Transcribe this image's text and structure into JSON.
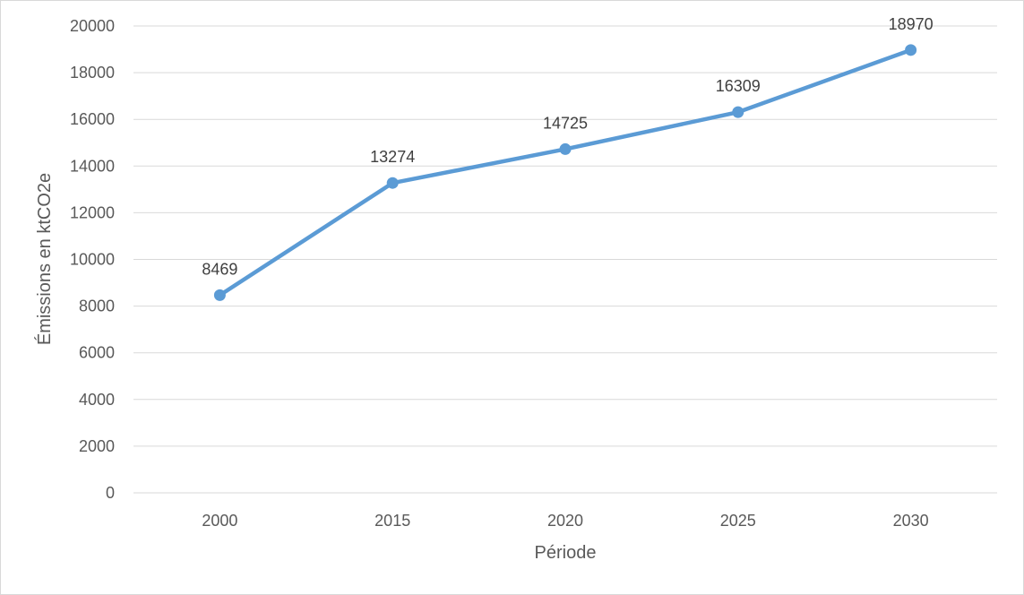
{
  "chart_data": {
    "type": "line",
    "title": "",
    "xlabel": "Période",
    "ylabel": "Émissions en ktCO2e",
    "categories": [
      "2000",
      "2015",
      "2020",
      "2025",
      "2030"
    ],
    "series": [
      {
        "values": [
          8469,
          13274,
          14725,
          16309,
          18970
        ],
        "color": "#5b9bd5"
      }
    ],
    "data_labels": [
      "8469",
      "13274",
      "14725",
      "16309",
      "18970"
    ],
    "ylim": [
      0,
      20000
    ],
    "yticks": [
      0,
      2000,
      4000,
      6000,
      8000,
      10000,
      12000,
      14000,
      16000,
      18000,
      20000
    ],
    "ytick_labels": [
      "0",
      "2000",
      "4000",
      "6000",
      "8000",
      "10000",
      "12000",
      "14000",
      "16000",
      "18000",
      "20000"
    ],
    "grid": true,
    "legend": "none",
    "colors": {
      "gridline": "#d9d9d9",
      "axis_text": "#595959",
      "line": "#5b9bd5"
    }
  }
}
